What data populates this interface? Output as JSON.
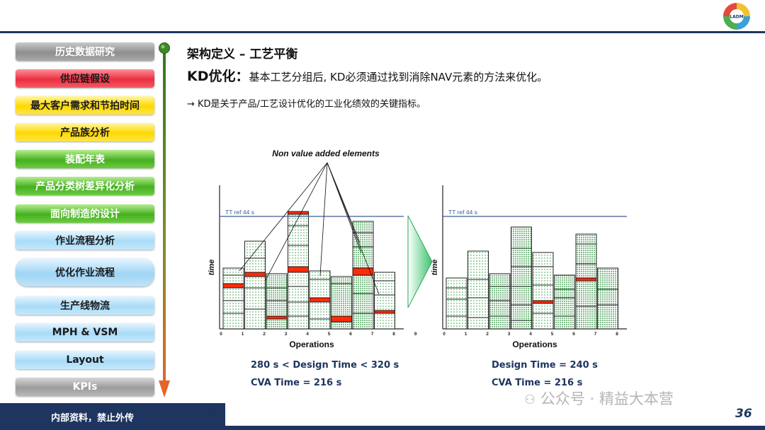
{
  "sidebar": {
    "items": [
      {
        "label": "历史数据研究",
        "style": "c-gray"
      },
      {
        "label": "供应链假设",
        "style": "c-red"
      },
      {
        "label": "最大客户需求和节拍时间",
        "style": "c-yellow"
      },
      {
        "label": "产品族分析",
        "style": "c-yellow"
      },
      {
        "label": "装配年表",
        "style": "c-green"
      },
      {
        "label": "产品分类树差异化分析",
        "style": "c-green"
      },
      {
        "label": "面向制造的设计",
        "style": "c-green"
      },
      {
        "label": "作业流程分析",
        "style": "c-blue"
      },
      {
        "label": "优化作业流程",
        "style": "c-blue-active"
      },
      {
        "label": "生产线物流",
        "style": "c-blue"
      },
      {
        "label": "MPH & VSM",
        "style": "c-blue"
      },
      {
        "label": "Layout",
        "style": "c-blue"
      },
      {
        "label": "KPIs",
        "style": "c-gray2"
      }
    ]
  },
  "header": {
    "title": "架构定义 – 工艺平衡",
    "kd_bold": "KD优化",
    "kd_colon": "：",
    "kd_text": "基本工艺分组后, KD必须通过找到消除NAV元素的方法来优化。",
    "note": "→ KD是关于产品/工艺设计优化的工业化绩效的关键指标。"
  },
  "diagram": {
    "annotation": "Non value added elements",
    "tt_label": "TT ref 44 s",
    "y_label": "time",
    "x_label": "Operations",
    "x_ticks": [
      "0",
      "1",
      "2",
      "3",
      "4",
      "5",
      "6",
      "7",
      "8",
      "9"
    ],
    "left_caption_1": "280 s < Design Time < 320 s",
    "left_caption_2": "CVA Time = 216 s",
    "right_caption_1": "Design Time = 240 s",
    "right_caption_2": "CVA Time = 216 s"
  },
  "footer": {
    "confidential": "内部资料，禁止外传",
    "watermark": "公众号 · 精益大本营",
    "page": "36"
  },
  "logo": {
    "center_text": "LADM"
  }
}
